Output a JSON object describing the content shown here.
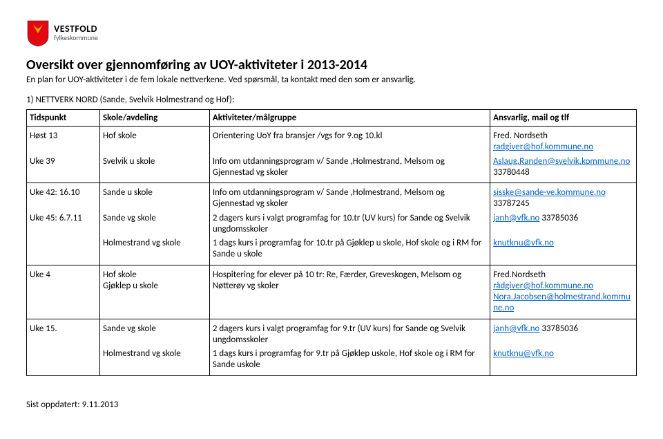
{
  "logo": {
    "name": "VESTFOLD",
    "sub": "fylkeskommune",
    "shield_fill": "#e30613",
    "shield_accent": "#f9b000"
  },
  "title": "Oversikt over gjennomføring av UOY-aktiviteter i 2013-2014",
  "subtitle": "En plan for UOY-aktiviteter i de fem lokale nettverkene. Ved spørsmål, ta kontakt med den som er ansvarlig.",
  "section_heading": "1)   NETTVERK NORD (Sande, Svelvik Holmestrand og Hof):",
  "columns": [
    "Tidspunkt",
    "Skole/avdeling",
    "Aktiviteter/målgruppe",
    "Ansvarlig, mail og tlf"
  ],
  "groups": [
    {
      "rows": [
        {
          "tidspunkt": "Høst 13",
          "skole": "Hof skole",
          "aktivitet": "Orientering UoY fra bransjer /vgs  for 9.og 10.kl",
          "ansvarlig_pre": "Fred. Nordseth ",
          "ansvarlig_link": "radgiver@hof.kommune.no",
          "ansvarlig_post": ""
        },
        {
          "tidspunkt": "Uke 39",
          "skole": "Svelvik u skole",
          "aktivitet": "Info om utdanningsprogram v/ Sande ,Holmestrand, Melsom og Gjennestad vg skoler",
          "ansvarlig_pre": "",
          "ansvarlig_link": "Aslaug.Randen@svelvik.kommune.no",
          "ansvarlig_post": " 33780448"
        }
      ]
    },
    {
      "rows": [
        {
          "tidspunkt": "Uke 42: 16.10",
          "skole": "Sande u skole",
          "aktivitet": "Info om utdanningsprogram v/ Sande ,Holmestrand, Melsom og Gjennestad vg skoler",
          "ansvarlig_pre": "",
          "ansvarlig_link": "sisske@sande-ve.kommune.no",
          "ansvarlig_post": " 33787245"
        },
        {
          "tidspunkt": "Uke 45:  6.7.11",
          "skole": "Sande vg skole",
          "aktivitet": "2 dagers kurs i valgt programfag for 10.tr (UV kurs) for Sande og Svelvik ungdomsskoler",
          "ansvarlig_pre": "",
          "ansvarlig_link": "janh@vfk.no",
          "ansvarlig_post": " 33785036"
        },
        {
          "tidspunkt": "",
          "skole": "Holmestrand vg skole",
          "aktivitet": "1 dags kurs i programfag for 10.tr på Gjøklep u skole, Hof skole og i RM for Sande u skole",
          "ansvarlig_pre": "",
          "ansvarlig_link": "knutknu@vfk.no",
          "ansvarlig_post": ""
        }
      ]
    },
    {
      "rows": [
        {
          "tidspunkt": "Uke 4",
          "skole": "Hof skole\nGjøklep u skole",
          "aktivitet": "Hospitering for  elever på 10 tr: Re, Færder, Greveskogen, Melsom og Nøtterøy vg skoler",
          "ansvarlig_lines": [
            {
              "pre": "Fred.Nordseth",
              "link": "",
              "post": ""
            },
            {
              "pre": "",
              "link": "rådgiver@hof.kommune.no",
              "post": ""
            },
            {
              "pre": "",
              "link": "Nora.Jacobsen@holmestrand.kommune.no",
              "post": ""
            }
          ]
        }
      ]
    },
    {
      "rows": [
        {
          "tidspunkt": "Uke 15.",
          "skole": "Sande vg skole",
          "aktivitet": "2 dagers kurs i valgt programfag for 9.tr (UV kurs) for Sande og Svelvik ungdomsskoler",
          "ansvarlig_pre": "",
          "ansvarlig_link": "janh@vfk.no",
          "ansvarlig_post": " 33785036"
        },
        {
          "tidspunkt": "",
          "skole": "Holmestrand vg skole",
          "aktivitet": "1 dags kurs i programfag for 9.tr på Gjøklep uskole, Hof skole og i RM for Sande uskole",
          "ansvarlig_pre": "",
          "ansvarlig_link": "knutknu@vfk.no",
          "ansvarlig_post": ""
        }
      ]
    }
  ],
  "footer": "Sist oppdatert: 9.11.2013"
}
